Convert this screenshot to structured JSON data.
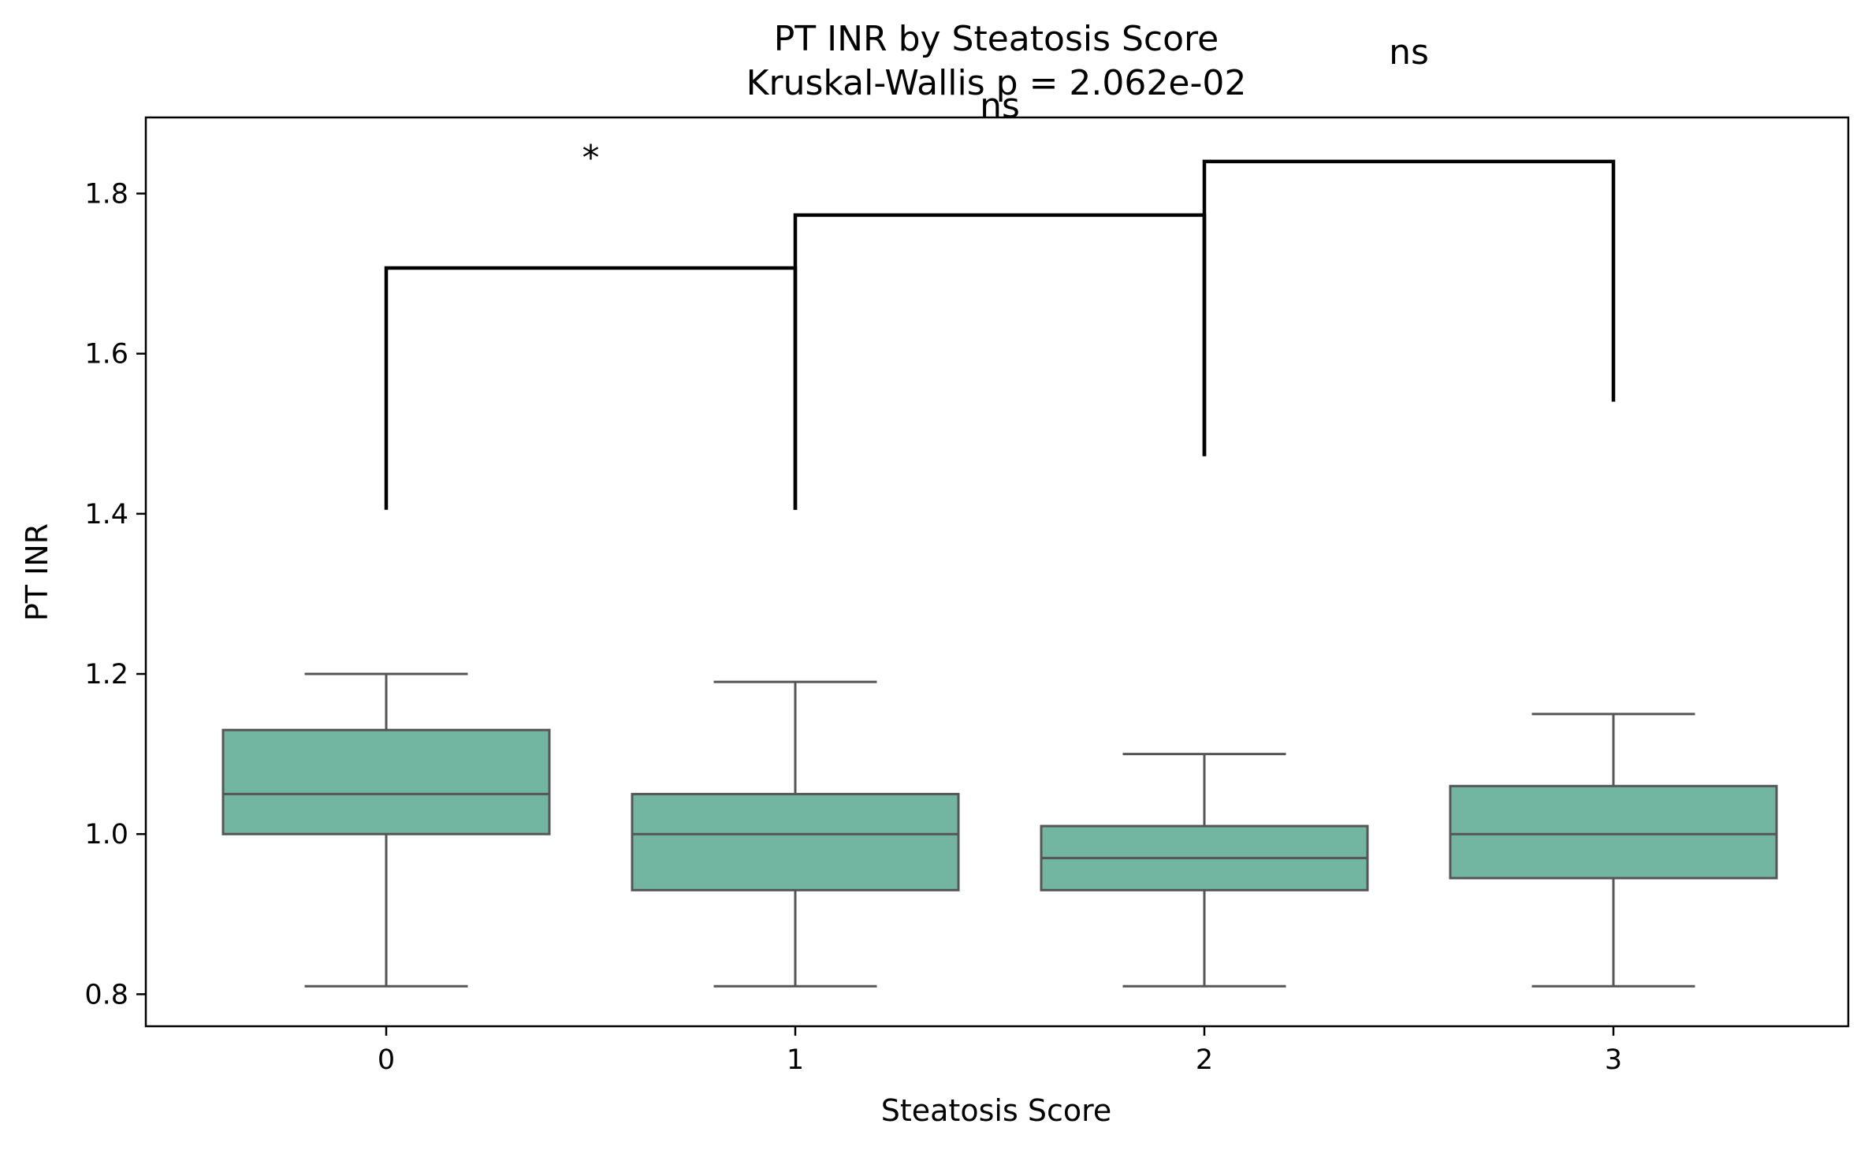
{
  "chart_data": {
    "type": "box",
    "title": "PT INR by Steatosis Score",
    "subtitle": "Kruskal-Wallis p = 2.062e-02",
    "xlabel": "Steatosis Score",
    "ylabel": "PT INR",
    "categories": [
      "0",
      "1",
      "2",
      "3"
    ],
    "ylim": [
      0.76,
      1.895
    ],
    "yticks": [
      0.8,
      1.0,
      1.2,
      1.4,
      1.6,
      1.8
    ],
    "ytick_labels": [
      "0.8",
      "1.0",
      "1.2",
      "1.4",
      "1.6",
      "1.8"
    ],
    "grid": false,
    "box_color": "#72b6a1",
    "line_color": "#555555",
    "boxes": [
      {
        "category": "0",
        "whisker_low": 0.81,
        "q1": 1.0,
        "median": 1.05,
        "q3": 1.13,
        "whisker_high": 1.2
      },
      {
        "category": "1",
        "whisker_low": 0.81,
        "q1": 0.93,
        "median": 1.0,
        "q3": 1.05,
        "whisker_high": 1.19
      },
      {
        "category": "2",
        "whisker_low": 0.81,
        "q1": 0.93,
        "median": 0.97,
        "q3": 1.01,
        "whisker_high": 1.1
      },
      {
        "category": "3",
        "whisker_low": 0.81,
        "q1": 0.945,
        "median": 1.0,
        "q3": 1.06,
        "whisker_high": 1.15
      }
    ],
    "annotations": [
      {
        "from": 0,
        "to": 1,
        "left_y": 1.405,
        "right_y": 1.405,
        "bar_y": 1.707,
        "text": "*",
        "text_y": 1.83
      },
      {
        "from": 1,
        "to": 2,
        "left_y": 1.405,
        "right_y": 1.472,
        "bar_y": 1.773,
        "text": "ns",
        "text_y": 1.895
      },
      {
        "from": 2,
        "to": 3,
        "left_y": 1.472,
        "right_y": 1.54,
        "bar_y": 1.84,
        "text": "ns",
        "text_y": 1.962
      }
    ]
  }
}
